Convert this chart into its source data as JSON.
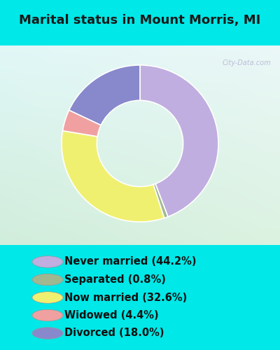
{
  "title": "Marital status in Mount Morris, MI",
  "slices": [
    {
      "label": "Never married (44.2%)",
      "value": 44.2,
      "color": "#c0aee0"
    },
    {
      "label": "Separated (0.8%)",
      "value": 0.8,
      "color": "#a0b890"
    },
    {
      "label": "Now married (32.6%)",
      "value": 32.6,
      "color": "#f0f070"
    },
    {
      "label": "Widowed (4.4%)",
      "value": 4.4,
      "color": "#f0a0a0"
    },
    {
      "label": "Divorced (18.0%)",
      "value": 18.0,
      "color": "#8888cc"
    }
  ],
  "outer_bg": "#00e8e8",
  "chart_bg_tl": [
    0.88,
    0.97,
    0.97
  ],
  "chart_bg_br": [
    0.82,
    0.93,
    0.86
  ],
  "title_fontsize": 13,
  "legend_fontsize": 10.5,
  "watermark": "City-Data.com",
  "donut_width": 0.45,
  "start_angle": 90
}
